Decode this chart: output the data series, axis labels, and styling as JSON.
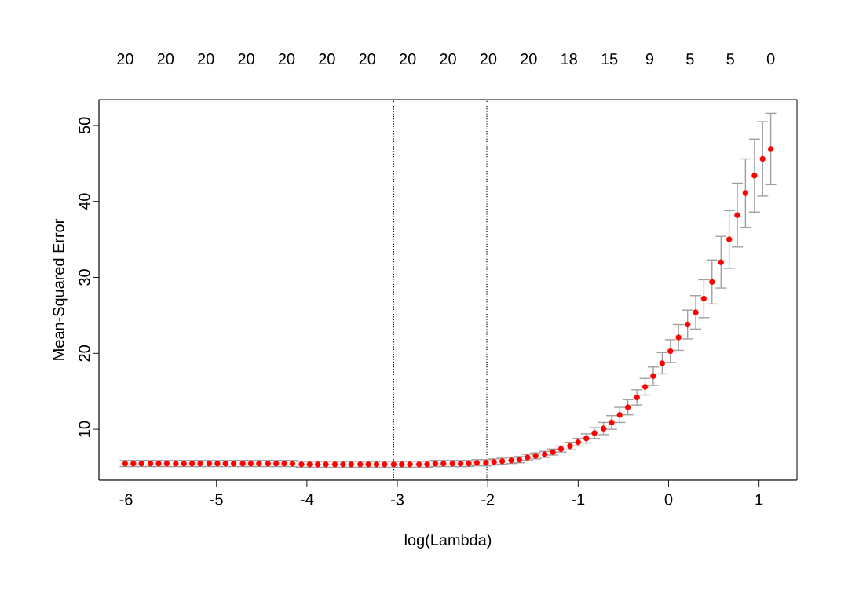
{
  "chart_data": {
    "type": "scatter",
    "xlabel": "log(Lambda)",
    "ylabel": "Mean-Squared Error",
    "color": "#ff0000",
    "x": [
      -6.01,
      -5.92,
      -5.83,
      -5.73,
      -5.64,
      -5.55,
      -5.45,
      -5.36,
      -5.27,
      -5.18,
      -5.08,
      -4.99,
      -4.9,
      -4.81,
      -4.71,
      -4.62,
      -4.53,
      -4.43,
      -4.34,
      -4.25,
      -4.16,
      -4.06,
      -3.97,
      -3.88,
      -3.79,
      -3.69,
      -3.6,
      -3.51,
      -3.41,
      -3.32,
      -3.23,
      -3.14,
      -3.04,
      -2.95,
      -2.86,
      -2.76,
      -2.67,
      -2.58,
      -2.49,
      -2.39,
      -2.3,
      -2.21,
      -2.12,
      -2.02,
      -1.93,
      -1.84,
      -1.74,
      -1.65,
      -1.56,
      -1.47,
      -1.37,
      -1.28,
      -1.19,
      -1.09,
      -1.0,
      -0.91,
      -0.82,
      -0.72,
      -0.63,
      -0.54,
      -0.45,
      -0.35,
      -0.26,
      -0.17,
      -0.07,
      0.02,
      0.11,
      0.21,
      0.3,
      0.39,
      0.48,
      0.58,
      0.67,
      0.76,
      0.85,
      0.95,
      1.04,
      1.13
    ],
    "values": [
      5.5,
      5.5,
      5.5,
      5.5,
      5.5,
      5.5,
      5.5,
      5.5,
      5.5,
      5.5,
      5.5,
      5.5,
      5.5,
      5.5,
      5.5,
      5.5,
      5.5,
      5.5,
      5.5,
      5.5,
      5.5,
      5.4,
      5.4,
      5.4,
      5.4,
      5.4,
      5.4,
      5.4,
      5.4,
      5.4,
      5.4,
      5.4,
      5.4,
      5.4,
      5.4,
      5.4,
      5.4,
      5.5,
      5.5,
      5.5,
      5.5,
      5.5,
      5.6,
      5.6,
      5.7,
      5.8,
      5.9,
      6.0,
      6.3,
      6.5,
      6.7,
      7.0,
      7.4,
      7.8,
      8.3,
      8.8,
      9.5,
      10.1,
      10.9,
      11.9,
      12.9,
      14.2,
      15.6,
      17.0,
      18.7,
      20.3,
      22.1,
      23.8,
      25.4,
      27.2,
      29.4,
      32.0,
      35.0,
      38.2,
      41.1,
      43.4,
      45.6,
      46.9
    ],
    "errors": [
      0.4,
      0.4,
      0.4,
      0.4,
      0.4,
      0.4,
      0.4,
      0.4,
      0.4,
      0.4,
      0.4,
      0.4,
      0.4,
      0.4,
      0.4,
      0.4,
      0.4,
      0.4,
      0.4,
      0.4,
      0.4,
      0.4,
      0.4,
      0.4,
      0.4,
      0.4,
      0.4,
      0.4,
      0.4,
      0.4,
      0.4,
      0.4,
      0.4,
      0.4,
      0.4,
      0.4,
      0.4,
      0.4,
      0.4,
      0.4,
      0.4,
      0.4,
      0.4,
      0.4,
      0.4,
      0.4,
      0.4,
      0.4,
      0.4,
      0.4,
      0.4,
      0.4,
      0.4,
      0.5,
      0.5,
      0.6,
      0.7,
      0.8,
      0.9,
      1.0,
      1.0,
      1.0,
      1.1,
      1.2,
      1.4,
      1.5,
      1.7,
      1.9,
      2.2,
      2.5,
      2.9,
      3.4,
      3.8,
      4.2,
      4.5,
      4.8,
      4.9,
      4.7
    ],
    "xlim": [
      -6.3,
      1.42
    ],
    "ylim": [
      3.3,
      53.4
    ],
    "xticks": [
      -6,
      -5,
      -4,
      -3,
      -2,
      -1,
      0,
      1
    ],
    "yticks": [
      10,
      20,
      30,
      40,
      50
    ],
    "annotations": [
      "20",
      "20",
      "20",
      "20",
      "20",
      "20",
      "20",
      "20",
      "20",
      "20",
      "20",
      "18",
      "15",
      "9",
      "5",
      "5",
      "0"
    ],
    "ref_lines": [
      {
        "axis": "x",
        "value": -3.04,
        "color": "#000000",
        "line_style": "dotted"
      },
      {
        "axis": "x",
        "value": -2.01,
        "color": "#000000",
        "line_style": "dotted"
      }
    ]
  }
}
